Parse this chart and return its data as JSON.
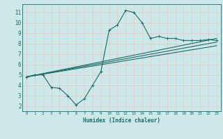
{
  "bg_color": "#cce8e8",
  "grid_color": "#e8c8c8",
  "line_color": "#1a6b6b",
  "xlabel": "Humidex (Indice chaleur)",
  "xlim": [
    -0.5,
    23.5
  ],
  "ylim": [
    1.5,
    11.8
  ],
  "yticks": [
    2,
    3,
    4,
    5,
    6,
    7,
    8,
    9,
    10,
    11
  ],
  "xticks": [
    0,
    1,
    2,
    3,
    4,
    5,
    6,
    7,
    8,
    9,
    10,
    11,
    12,
    13,
    14,
    15,
    16,
    17,
    18,
    19,
    20,
    21,
    22,
    23
  ],
  "line1_x": [
    0,
    1,
    2,
    3,
    4,
    5,
    6,
    7,
    8,
    9,
    10,
    11,
    12,
    13,
    14,
    15,
    16,
    17,
    18,
    19,
    20,
    21,
    22,
    23
  ],
  "line1_y": [
    4.8,
    5.0,
    5.0,
    3.8,
    3.7,
    3.0,
    2.1,
    2.7,
    4.0,
    5.3,
    9.3,
    9.8,
    11.2,
    11.0,
    10.0,
    8.5,
    8.7,
    8.5,
    8.5,
    8.3,
    8.3,
    8.3,
    8.4,
    8.3
  ],
  "line2_x": [
    0,
    23
  ],
  "line2_y": [
    4.8,
    8.5
  ],
  "line3_x": [
    0,
    23
  ],
  "line3_y": [
    4.8,
    8.15
  ],
  "line4_x": [
    0,
    23
  ],
  "line4_y": [
    4.8,
    7.8
  ],
  "marker_x": [
    0,
    1,
    2,
    3,
    4,
    5,
    6,
    7,
    8,
    9,
    10,
    11,
    12,
    13,
    14,
    15,
    16,
    17,
    18,
    19,
    20,
    21,
    22,
    23
  ],
  "marker_y": [
    4.8,
    5.0,
    5.0,
    3.8,
    3.7,
    3.0,
    2.1,
    2.7,
    4.0,
    5.3,
    9.3,
    9.8,
    11.2,
    11.0,
    10.0,
    8.5,
    8.7,
    8.5,
    8.5,
    8.3,
    8.3,
    8.3,
    8.4,
    8.3
  ]
}
